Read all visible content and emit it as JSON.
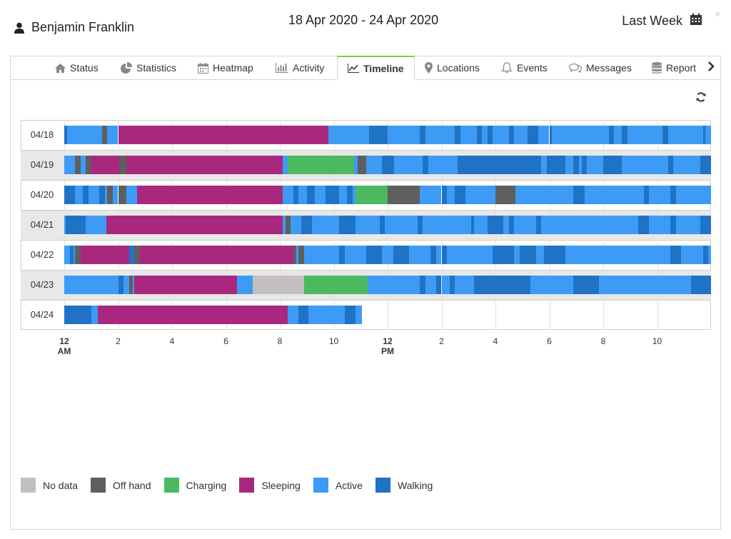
{
  "header": {
    "user_name": "Benjamin Franklin",
    "date_range": "18 Apr 2020 - 24 Apr 2020",
    "period_label": "Last Week",
    "close_glyph": "×"
  },
  "tabs": [
    {
      "label": "Status",
      "icon": "home-icon"
    },
    {
      "label": "Statistics",
      "icon": "pie-chart-icon"
    },
    {
      "label": "Heatmap",
      "icon": "calendar-icon"
    },
    {
      "label": "Activity",
      "icon": "bar-chart-icon"
    },
    {
      "label": "Timeline",
      "icon": "line-chart-icon",
      "active": true
    },
    {
      "label": "Locations",
      "icon": "map-pin-icon"
    },
    {
      "label": "Events",
      "icon": "bell-icon"
    },
    {
      "label": "Messages",
      "icon": "chat-icon"
    },
    {
      "label": "Report",
      "icon": "database-icon"
    }
  ],
  "colors": {
    "No data": "#c4bfbf",
    "Off hand": "#5f5f5f",
    "Charging": "#4cb960",
    "Sleeping": "#a8287f",
    "Active": "#3d9bf5",
    "Walking": "#2073c4"
  },
  "legend": [
    "No data",
    "Off hand",
    "Charging",
    "Sleeping",
    "Active",
    "Walking"
  ],
  "axis": {
    "ticks": [
      {
        "hour": 0,
        "label": "12",
        "sub": "AM"
      },
      {
        "hour": 2,
        "label": "2"
      },
      {
        "hour": 4,
        "label": "4"
      },
      {
        "hour": 6,
        "label": "6"
      },
      {
        "hour": 8,
        "label": "8"
      },
      {
        "hour": 10,
        "label": "10"
      },
      {
        "hour": 12,
        "label": "12",
        "sub": "PM"
      },
      {
        "hour": 14,
        "label": "2"
      },
      {
        "hour": 16,
        "label": "4"
      },
      {
        "hour": 18,
        "label": "6"
      },
      {
        "hour": 20,
        "label": "8"
      },
      {
        "hour": 22,
        "label": "10"
      }
    ]
  },
  "chart_data": {
    "type": "timeline",
    "x_unit": "hour of day",
    "xlim": [
      0,
      24
    ],
    "rows": [
      {
        "label": "04/18",
        "segments": [
          [
            "Walking",
            0,
            0.1
          ],
          [
            "Active",
            0.1,
            1.4
          ],
          [
            "Off hand",
            1.4,
            1.6
          ],
          [
            "Active",
            1.6,
            2
          ],
          [
            "Sleeping",
            2,
            9.8
          ],
          [
            "Active",
            9.8,
            11.3
          ],
          [
            "Walking",
            11.3,
            12
          ],
          [
            "Active",
            12,
            13.2
          ],
          [
            "Walking",
            13.2,
            13.4
          ],
          [
            "Active",
            13.4,
            14.5
          ],
          [
            "Walking",
            14.5,
            14.7
          ],
          [
            "Active",
            14.7,
            15.3
          ],
          [
            "Walking",
            15.3,
            15.5
          ],
          [
            "Active",
            15.5,
            15.7
          ],
          [
            "Walking",
            15.7,
            15.9
          ],
          [
            "Active",
            15.9,
            16.5
          ],
          [
            "Walking",
            16.5,
            16.7
          ],
          [
            "Active",
            16.7,
            17.2
          ],
          [
            "Walking",
            17.2,
            17.6
          ],
          [
            "Active",
            17.6,
            18
          ],
          [
            "Walking",
            18,
            18.1
          ],
          [
            "Active",
            18.1,
            20.2
          ],
          [
            "Walking",
            20.2,
            20.4
          ],
          [
            "Active",
            20.4,
            20.7
          ],
          [
            "Walking",
            20.7,
            20.9
          ],
          [
            "Active",
            20.9,
            22.2
          ],
          [
            "Walking",
            22.2,
            22.4
          ],
          [
            "Active",
            22.4,
            23.7
          ],
          [
            "Walking",
            23.7,
            23.8
          ],
          [
            "Active",
            23.8,
            24
          ]
        ]
      },
      {
        "label": "04/19",
        "segments": [
          [
            "Active",
            0,
            0.4
          ],
          [
            "Off hand",
            0.4,
            0.6
          ],
          [
            "Active",
            0.6,
            0.8
          ],
          [
            "Off hand",
            0.8,
            1
          ],
          [
            "Sleeping",
            1,
            2.05
          ],
          [
            "Off hand",
            2.05,
            2.3
          ],
          [
            "Sleeping",
            2.3,
            8.1
          ],
          [
            "Active",
            8.1,
            8.3
          ],
          [
            "Charging",
            8.3,
            10.75
          ],
          [
            "Active",
            10.75,
            10.9
          ],
          [
            "Off hand",
            10.9,
            11.2
          ],
          [
            "Active",
            11.2,
            11.8
          ],
          [
            "Walking",
            11.8,
            12.25
          ],
          [
            "Active",
            12.25,
            13.3
          ],
          [
            "Walking",
            13.3,
            13.5
          ],
          [
            "Active",
            13.5,
            14.6
          ],
          [
            "Walking",
            14.6,
            17.7
          ],
          [
            "Active",
            17.7,
            17.9
          ],
          [
            "Walking",
            17.9,
            18.6
          ],
          [
            "Active",
            18.6,
            18.9
          ],
          [
            "Walking",
            18.9,
            19.1
          ],
          [
            "Active",
            19.1,
            19.2
          ],
          [
            "Walking",
            19.2,
            19.4
          ],
          [
            "Active",
            19.4,
            20
          ],
          [
            "Walking",
            20,
            20.7
          ],
          [
            "Active",
            20.7,
            22.4
          ],
          [
            "Walking",
            22.4,
            22.6
          ],
          [
            "Active",
            22.6,
            23.6
          ],
          [
            "Walking",
            23.6,
            24
          ]
        ]
      },
      {
        "label": "04/20",
        "segments": [
          [
            "Walking",
            0,
            0.4
          ],
          [
            "Active",
            0.4,
            0.7
          ],
          [
            "Walking",
            0.7,
            0.9
          ],
          [
            "Active",
            0.9,
            1.3
          ],
          [
            "Walking",
            1.3,
            1.5
          ],
          [
            "Active",
            1.5,
            1.6
          ],
          [
            "Off hand",
            1.6,
            1.8
          ],
          [
            "Active",
            1.8,
            2
          ],
          [
            "Off hand",
            2,
            2.3
          ],
          [
            "Active",
            2.3,
            2.7
          ],
          [
            "Sleeping",
            2.7,
            8.1
          ],
          [
            "Active",
            8.1,
            8.5
          ],
          [
            "Walking",
            8.5,
            8.7
          ],
          [
            "Active",
            8.7,
            9
          ],
          [
            "Walking",
            9,
            9.3
          ],
          [
            "Active",
            9.3,
            9.7
          ],
          [
            "Walking",
            9.7,
            10.2
          ],
          [
            "Active",
            10.2,
            10.5
          ],
          [
            "Walking",
            10.5,
            10.7
          ],
          [
            "Active",
            10.7,
            10.8
          ],
          [
            "Charging",
            10.8,
            12
          ],
          [
            "Off hand",
            12,
            13.2
          ],
          [
            "Active",
            13.2,
            14
          ],
          [
            "Walking",
            14,
            14.2
          ],
          [
            "Active",
            14.2,
            14.5
          ],
          [
            "Walking",
            14.5,
            14.9
          ],
          [
            "Active",
            14.9,
            16
          ],
          [
            "Off hand",
            16,
            16.75
          ],
          [
            "Active",
            16.75,
            18.9
          ],
          [
            "Walking",
            18.9,
            19.3
          ],
          [
            "Active",
            19.3,
            21.5
          ],
          [
            "Walking",
            21.5,
            21.7
          ],
          [
            "Active",
            21.7,
            22.5
          ],
          [
            "Walking",
            22.5,
            22.7
          ],
          [
            "Active",
            22.7,
            24
          ]
        ]
      },
      {
        "label": "04/21",
        "segments": [
          [
            "Active",
            0,
            0.05
          ],
          [
            "Walking",
            0.05,
            0.8
          ],
          [
            "Active",
            0.8,
            1.55
          ],
          [
            "Sleeping",
            1.55,
            8.1
          ],
          [
            "Active",
            8.1,
            8.2
          ],
          [
            "Off hand",
            8.2,
            8.4
          ],
          [
            "Active",
            8.4,
            8.8
          ],
          [
            "Walking",
            8.8,
            9.2
          ],
          [
            "Active",
            9.2,
            10.2
          ],
          [
            "Walking",
            10.2,
            10.8
          ],
          [
            "Active",
            10.8,
            11.7
          ],
          [
            "Walking",
            11.7,
            11.9
          ],
          [
            "Active",
            11.9,
            13.1
          ],
          [
            "Walking",
            13.1,
            13.3
          ],
          [
            "Active",
            13.3,
            15.1
          ],
          [
            "Walking",
            15.1,
            15.2
          ],
          [
            "Active",
            15.2,
            15.7
          ],
          [
            "Walking",
            15.7,
            16.3
          ],
          [
            "Active",
            16.3,
            16.5
          ],
          [
            "Walking",
            16.5,
            16.7
          ],
          [
            "Active",
            16.7,
            17.5
          ],
          [
            "Walking",
            17.5,
            17.7
          ],
          [
            "Active",
            17.7,
            21.3
          ],
          [
            "Walking",
            21.3,
            21.7
          ],
          [
            "Active",
            21.7,
            22.5
          ],
          [
            "Walking",
            22.5,
            22.7
          ],
          [
            "Active",
            22.7,
            23.6
          ],
          [
            "Walking",
            23.6,
            24
          ]
        ]
      },
      {
        "label": "04/22",
        "segments": [
          [
            "Active",
            0,
            0.2
          ],
          [
            "Walking",
            0.2,
            0.35
          ],
          [
            "Active",
            0.35,
            0.4
          ],
          [
            "Off hand",
            0.4,
            0.6
          ],
          [
            "Sleeping",
            0.6,
            2.4
          ],
          [
            "Walking",
            2.4,
            2.6
          ],
          [
            "Off hand",
            2.6,
            2.8
          ],
          [
            "Sleeping",
            2.8,
            8.5
          ],
          [
            "Off hand",
            8.5,
            8.6
          ],
          [
            "Active",
            8.6,
            8.7
          ],
          [
            "Off hand",
            8.7,
            8.9
          ],
          [
            "Active",
            8.9,
            10.2
          ],
          [
            "Walking",
            10.2,
            10.4
          ],
          [
            "Active",
            10.4,
            11.2
          ],
          [
            "Walking",
            11.2,
            11.8
          ],
          [
            "Active",
            11.8,
            12.2
          ],
          [
            "Walking",
            12.2,
            12.8
          ],
          [
            "Active",
            12.8,
            13.6
          ],
          [
            "Walking",
            13.6,
            13.8
          ],
          [
            "Active",
            13.8,
            14
          ],
          [
            "Walking",
            14,
            14.2
          ],
          [
            "Active",
            14.2,
            15.9
          ],
          [
            "Walking",
            15.9,
            16.7
          ],
          [
            "Active",
            16.7,
            16.9
          ],
          [
            "Walking",
            16.9,
            17.5
          ],
          [
            "Active",
            17.5,
            17.8
          ],
          [
            "Walking",
            17.8,
            18.6
          ],
          [
            "Active",
            18.6,
            22.5
          ],
          [
            "Walking",
            22.5,
            22.9
          ],
          [
            "Active",
            22.9,
            23.7
          ],
          [
            "Walking",
            23.7,
            23.9
          ],
          [
            "Active",
            23.9,
            24
          ]
        ]
      },
      {
        "label": "04/23",
        "segments": [
          [
            "Active",
            0,
            2
          ],
          [
            "Walking",
            2,
            2.2
          ],
          [
            "Active",
            2.2,
            2.4
          ],
          [
            "Off hand",
            2.4,
            2.55
          ],
          [
            "Active",
            2.55,
            2.6
          ],
          [
            "Sleeping",
            2.6,
            6.4
          ],
          [
            "Active",
            6.4,
            7
          ],
          [
            "No data",
            7,
            8.9
          ],
          [
            "Charging",
            8.9,
            11.25
          ],
          [
            "Active",
            11.25,
            13.2
          ],
          [
            "Walking",
            13.2,
            13.4
          ],
          [
            "Active",
            13.4,
            13.8
          ],
          [
            "Walking",
            13.8,
            14
          ],
          [
            "Active",
            14,
            14.3
          ],
          [
            "Walking",
            14.3,
            14.5
          ],
          [
            "Active",
            14.5,
            15.2
          ],
          [
            "Walking",
            15.2,
            17.3
          ],
          [
            "Active",
            17.3,
            18.9
          ],
          [
            "Walking",
            18.9,
            19.85
          ],
          [
            "Active",
            19.85,
            23.25
          ],
          [
            "Walking",
            23.25,
            24
          ]
        ]
      },
      {
        "label": "04/24",
        "segments": [
          [
            "Walking",
            0,
            1
          ],
          [
            "Active",
            1,
            1.25
          ],
          [
            "Sleeping",
            1.25,
            8.3
          ],
          [
            "Active",
            8.3,
            8.7
          ],
          [
            "Walking",
            8.7,
            9.05
          ],
          [
            "Active",
            9.05,
            10.4
          ],
          [
            "Walking",
            10.4,
            10.8
          ],
          [
            "Active",
            10.8,
            11.05
          ]
        ]
      }
    ]
  }
}
